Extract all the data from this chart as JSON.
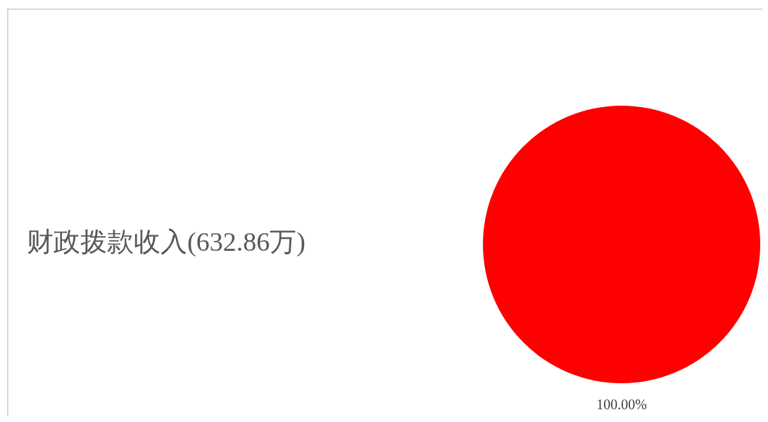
{
  "chart_data": {
    "type": "pie",
    "title": "财政拨款收入(632.86万)",
    "categories": [
      null
    ],
    "values": [
      100
    ],
    "colors": [
      "#ff0000"
    ],
    "value_labels": [
      "100.00%"
    ],
    "legend": false
  }
}
